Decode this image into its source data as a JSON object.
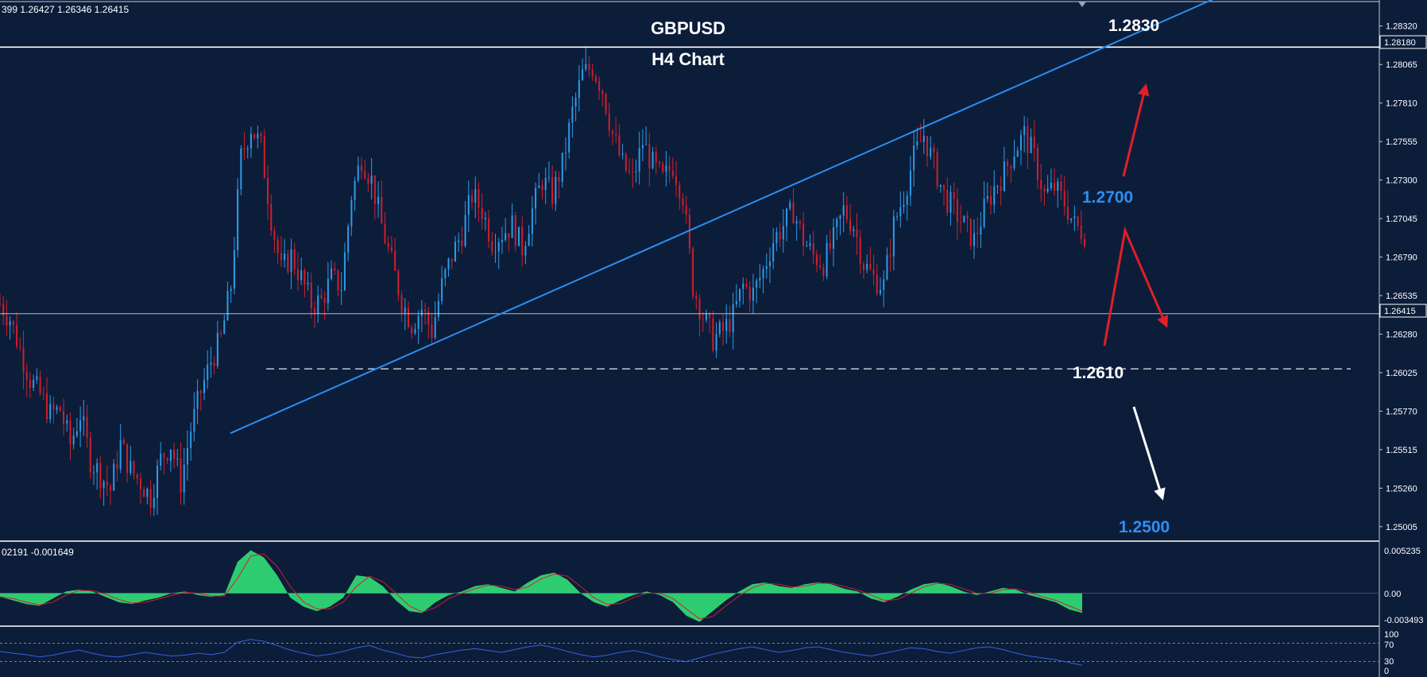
{
  "header": {
    "ohlc_readout": "399 1.26427 1.26346 1.26415"
  },
  "macd_readout": "02191 -0.001649",
  "colors": {
    "background": "#0c1d3a",
    "bull_candle": "#2f9be6",
    "bear_candle": "#d11e2c",
    "trendline": "#2b8ef0",
    "level_blue_text": "#2e8ff0",
    "arrow_red": "#e11f26",
    "arrow_white": "#ffffff",
    "macd_histogram": "#2ecc71",
    "macd_signal": "#d11e2c",
    "rsi_line": "#3b5fe0"
  },
  "chart_data": [
    {
      "type": "candlestick",
      "title": "GBPUSD",
      "subtitle": "H4 Chart",
      "y_tick_labels": [
        "1.28320",
        "1.28065",
        "1.27810",
        "1.27555",
        "1.27300",
        "1.27045",
        "1.26790",
        "1.26535",
        "1.26280",
        "1.26025",
        "1.25770",
        "1.25515",
        "1.25260",
        "1.25005"
      ],
      "ylim": [
        1.2492,
        1.2845
      ],
      "price_tag_top": "1.28180",
      "price_tag_current": "1.26415",
      "horizontal_lines": [
        1.2818,
        1.26415
      ],
      "support_dashed": 1.2605,
      "annotations": [
        "1.2830",
        "1.2700",
        "1.2610",
        "1.2500"
      ],
      "close_path": [
        [
          0,
          1.2648
        ],
        [
          6,
          1.2638
        ],
        [
          12,
          1.2618
        ],
        [
          18,
          1.2598
        ],
        [
          24,
          1.2588
        ],
        [
          30,
          1.2575
        ],
        [
          36,
          1.2578
        ],
        [
          42,
          1.2555
        ],
        [
          48,
          1.2575
        ],
        [
          54,
          1.2545
        ],
        [
          60,
          1.2535
        ],
        [
          66,
          1.2525
        ],
        [
          72,
          1.2555
        ],
        [
          78,
          1.2538
        ],
        [
          84,
          1.253
        ],
        [
          90,
          1.252
        ],
        [
          96,
          1.2545
        ],
        [
          102,
          1.2555
        ],
        [
          108,
          1.253
        ],
        [
          114,
          1.2565
        ],
        [
          120,
          1.259
        ],
        [
          126,
          1.261
        ],
        [
          132,
          1.2625
        ],
        [
          138,
          1.266
        ],
        [
          144,
          1.2745
        ],
        [
          150,
          1.2765
        ],
        [
          156,
          1.2752
        ],
        [
          162,
          1.2705
        ],
        [
          168,
          1.267
        ],
        [
          174,
          1.268
        ],
        [
          180,
          1.2665
        ],
        [
          186,
          1.2648
        ],
        [
          192,
          1.265
        ],
        [
          198,
          1.2665
        ],
        [
          204,
          1.266
        ],
        [
          210,
          1.272
        ],
        [
          216,
          1.2745
        ],
        [
          222,
          1.273
        ],
        [
          228,
          1.27
        ],
        [
          234,
          1.2675
        ],
        [
          240,
          1.265
        ],
        [
          246,
          1.2635
        ],
        [
          252,
          1.2645
        ],
        [
          258,
          1.263
        ],
        [
          264,
          1.266
        ],
        [
          270,
          1.268
        ],
        [
          276,
          1.2695
        ],
        [
          282,
          1.272
        ],
        [
          288,
          1.271
        ],
        [
          294,
          1.269
        ],
        [
          300,
          1.2695
        ],
        [
          306,
          1.27
        ],
        [
          312,
          1.2685
        ],
        [
          318,
          1.271
        ],
        [
          324,
          1.273
        ],
        [
          330,
          1.272
        ],
        [
          336,
          1.274
        ],
        [
          342,
          1.2775
        ],
        [
          348,
          1.28
        ],
        [
          354,
          1.2805
        ],
        [
          360,
          1.279
        ],
        [
          366,
          1.276
        ],
        [
          372,
          1.274
        ],
        [
          378,
          1.273
        ],
        [
          384,
          1.2755
        ],
        [
          390,
          1.274
        ],
        [
          396,
          1.273
        ],
        [
          402,
          1.274
        ],
        [
          408,
          1.272
        ],
        [
          414,
          1.266
        ],
        [
          420,
          1.264
        ],
        [
          426,
          1.2625
        ],
        [
          432,
          1.263
        ],
        [
          438,
          1.264
        ],
        [
          444,
          1.266
        ],
        [
          450,
          1.2655
        ],
        [
          456,
          1.267
        ],
        [
          462,
          1.269
        ],
        [
          468,
          1.27
        ],
        [
          474,
          1.271
        ],
        [
          480,
          1.269
        ],
        [
          486,
          1.268
        ],
        [
          492,
          1.2675
        ],
        [
          498,
          1.269
        ],
        [
          504,
          1.271
        ],
        [
          510,
          1.27
        ],
        [
          516,
          1.2675
        ],
        [
          522,
          1.2665
        ],
        [
          528,
          1.266
        ],
        [
          534,
          1.27
        ],
        [
          540,
          1.272
        ],
        [
          546,
          1.2745
        ],
        [
          552,
          1.276
        ],
        [
          558,
          1.274
        ],
        [
          564,
          1.272
        ],
        [
          570,
          1.271
        ],
        [
          576,
          1.27
        ],
        [
          582,
          1.269
        ],
        [
          588,
          1.271
        ],
        [
          594,
          1.2725
        ],
        [
          600,
          1.2735
        ],
        [
          606,
          1.275
        ],
        [
          612,
          1.276
        ],
        [
          618,
          1.2745
        ],
        [
          624,
          1.272
        ],
        [
          630,
          1.2725
        ],
        [
          636,
          1.2715
        ],
        [
          642,
          1.27
        ],
        [
          648,
          1.2695
        ]
      ],
      "x_range": [
        0,
        648
      ],
      "trendline": {
        "from": [
          0,
          1.2495
        ],
        "to": [
          378,
          1.268
        ]
      }
    },
    {
      "type": "histogram",
      "name": "MACD",
      "y_tick_labels": [
        "0.005235",
        "0.00",
        "-0.003493"
      ],
      "ylim": [
        -0.0035,
        0.0052
      ],
      "values": [
        -0.0004,
        -0.0008,
        -0.0012,
        -0.0014,
        -0.0006,
        0.0002,
        0.0004,
        0.0002,
        -0.0004,
        -0.001,
        -0.0012,
        -0.0008,
        -0.0005,
        0.0,
        0.0002,
        -0.0002,
        -0.0004,
        -0.0002,
        0.0035,
        0.0048,
        0.004,
        0.002,
        -0.0005,
        -0.0015,
        -0.002,
        -0.0015,
        -0.0005,
        0.002,
        0.0018,
        0.0008,
        -0.0008,
        -0.002,
        -0.0022,
        -0.001,
        -0.0002,
        0.0002,
        0.0008,
        0.001,
        0.0006,
        0.0002,
        0.0012,
        0.002,
        0.0023,
        0.0015,
        0.0,
        -0.001,
        -0.0015,
        -0.0008,
        -0.0002,
        0.0002,
        -0.0002,
        -0.001,
        -0.0025,
        -0.0032,
        -0.002,
        -0.0008,
        0.0002,
        0.001,
        0.0012,
        0.0008,
        0.0006,
        0.001,
        0.0012,
        0.001,
        0.0005,
        0.0002,
        -0.0006,
        -0.001,
        -0.0004,
        0.0004,
        0.001,
        0.0012,
        0.0008,
        0.0002,
        -0.0002,
        0.0002,
        0.0006,
        0.0004,
        -0.0002,
        -0.0006,
        -0.001,
        -0.0018,
        -0.0022
      ]
    },
    {
      "type": "line",
      "name": "RSI",
      "y_tick_labels": [
        "100",
        "70",
        "30",
        "0"
      ],
      "ylim": [
        0,
        100
      ],
      "levels": [
        70,
        30
      ],
      "values": [
        52,
        48,
        45,
        40,
        44,
        50,
        55,
        48,
        42,
        40,
        45,
        50,
        46,
        42,
        44,
        48,
        45,
        50,
        72,
        78,
        74,
        65,
        55,
        48,
        42,
        46,
        52,
        60,
        65,
        55,
        48,
        40,
        38,
        45,
        50,
        55,
        58,
        54,
        50,
        56,
        62,
        66,
        60,
        52,
        45,
        40,
        44,
        50,
        54,
        48,
        40,
        34,
        30,
        38,
        46,
        52,
        58,
        62,
        56,
        50,
        54,
        60,
        62,
        56,
        50,
        46,
        42,
        48,
        54,
        60,
        58,
        52,
        48,
        54,
        60,
        62,
        56,
        48,
        42,
        38,
        34,
        28,
        22
      ]
    }
  ]
}
